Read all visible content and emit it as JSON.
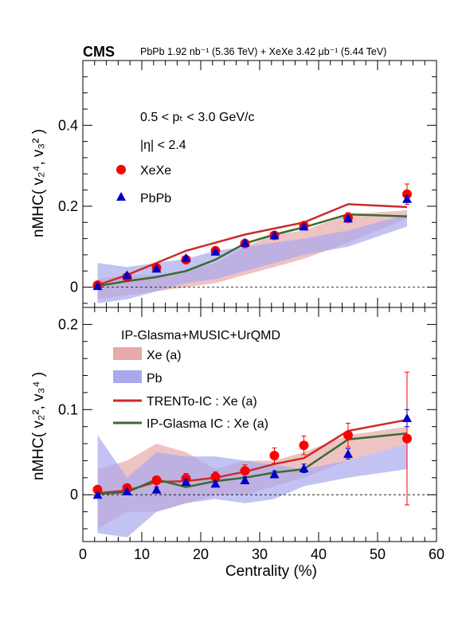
{
  "header": {
    "experiment": "CMS",
    "lumi_text": "PbPb 1.92 nb⁻¹ (5.36 TeV) + XeXe 3.42 μb⁻¹ (5.44 TeV)"
  },
  "colors": {
    "xe_marker": "#ff0000",
    "pb_marker": "#0000cc",
    "xe_band": "#e7a9a9",
    "pb_band": "#a9a9ee",
    "trento_line": "#cc2a2a",
    "ipglasma_line": "#3a6b2e"
  },
  "chart_data": [
    {
      "type": "scatter",
      "panel": "top",
      "ylabel": "nMHC( v₂⁴, v₃² )",
      "ylim": [
        -0.05,
        0.56
      ],
      "yticks": [
        0,
        0.2,
        0.4
      ],
      "ytick_labels": [
        "0",
        "0.2",
        "0.4"
      ],
      "annotations": [
        "0.5 < pₜ < 3.0 GeV/c",
        "|η| < 2.4"
      ],
      "legend": [
        "XeXe",
        "PbPb"
      ],
      "series": [
        {
          "name": "XeXe",
          "x": [
            2.5,
            7.5,
            12.5,
            17.5,
            22.5,
            27.5,
            32.5,
            37.5,
            45,
            55
          ],
          "y": [
            0.005,
            0.025,
            0.048,
            0.068,
            0.09,
            0.108,
            0.128,
            0.152,
            0.172,
            0.23
          ],
          "err": [
            0.004,
            0.004,
            0.005,
            0.007,
            0.007,
            0.008,
            0.008,
            0.01,
            0.012,
            0.025
          ]
        },
        {
          "name": "PbPb",
          "x": [
            2.5,
            7.5,
            12.5,
            17.5,
            22.5,
            27.5,
            32.5,
            37.5,
            45,
            55
          ],
          "y": [
            0.003,
            0.03,
            0.046,
            0.072,
            0.088,
            0.11,
            0.128,
            0.15,
            0.17,
            0.218
          ],
          "err": [
            0.002,
            0.002,
            0.003,
            0.004,
            0.004,
            0.004,
            0.005,
            0.005,
            0.006,
            0.008
          ]
        }
      ],
      "bands": [
        {
          "name": "Xe (a)",
          "x": [
            2.5,
            7.5,
            12.5,
            17.5,
            22.5,
            27.5,
            32.5,
            37.5,
            45,
            55
          ],
          "lo": [
            -0.03,
            -0.02,
            -0.01,
            0.0,
            0.01,
            0.03,
            0.05,
            0.07,
            0.11,
            0.17
          ],
          "hi": [
            0.02,
            0.03,
            0.03,
            0.04,
            0.06,
            0.1,
            0.13,
            0.14,
            0.18,
            0.19
          ]
        },
        {
          "name": "Pb",
          "x": [
            2.5,
            7.5,
            12.5,
            17.5,
            22.5,
            27.5,
            32.5,
            37.5,
            45,
            55
          ],
          "lo": [
            -0.04,
            -0.03,
            -0.01,
            0.01,
            0.02,
            0.04,
            0.06,
            0.08,
            0.1,
            0.15
          ],
          "hi": [
            0.06,
            0.05,
            0.06,
            0.07,
            0.09,
            0.1,
            0.11,
            0.12,
            0.14,
            0.18
          ]
        }
      ],
      "lines": [
        {
          "name": "TRENTo-IC : Xe (a)",
          "x": [
            2.5,
            7.5,
            12.5,
            17.5,
            22.5,
            27.5,
            32.5,
            37.5,
            45,
            55
          ],
          "y": [
            0.005,
            0.03,
            0.06,
            0.09,
            0.11,
            0.13,
            0.145,
            0.16,
            0.205,
            0.198
          ]
        },
        {
          "name": "IP-Glasma IC : Xe (a)",
          "x": [
            2.5,
            7.5,
            12.5,
            17.5,
            22.5,
            27.5,
            32.5,
            37.5,
            45,
            55
          ],
          "y": [
            0.003,
            0.015,
            0.025,
            0.04,
            0.068,
            0.108,
            0.13,
            0.148,
            0.18,
            0.175
          ]
        }
      ]
    },
    {
      "type": "scatter",
      "panel": "bottom",
      "xlabel": "Centrality (%)",
      "ylabel": "nMHC( v₂², v₃⁴ )",
      "xlim": [
        0,
        60
      ],
      "xticks": [
        0,
        10,
        20,
        30,
        40,
        50,
        60
      ],
      "xtick_labels": [
        "0",
        "10",
        "20",
        "30",
        "40",
        "50",
        "60"
      ],
      "ylim": [
        -0.055,
        0.22
      ],
      "yticks": [
        0,
        0.1,
        0.2
      ],
      "ytick_labels": [
        "0",
        "0.1",
        "0.2"
      ],
      "legend_title": "IP-Glasma+MUSIC+UrQMD",
      "legend": [
        "Xe (a)",
        "Pb",
        "TRENTo-IC : Xe (a)",
        "IP-Glasma IC : Xe (a)"
      ],
      "series": [
        {
          "name": "XeXe",
          "x": [
            2.5,
            7.5,
            12.5,
            17.5,
            22.5,
            27.5,
            32.5,
            37.5,
            45,
            55
          ],
          "y": [
            0.006,
            0.008,
            0.017,
            0.019,
            0.021,
            0.028,
            0.046,
            0.058,
            0.07,
            0.066
          ],
          "err": [
            0.004,
            0.004,
            0.005,
            0.006,
            0.006,
            0.007,
            0.009,
            0.011,
            0.014,
            0.078
          ]
        },
        {
          "name": "PbPb",
          "x": [
            2.5,
            7.5,
            12.5,
            17.5,
            22.5,
            27.5,
            32.5,
            37.5,
            45,
            55
          ],
          "y": [
            0.0,
            0.004,
            0.006,
            0.015,
            0.013,
            0.017,
            0.024,
            0.031,
            0.048,
            0.09
          ],
          "err": [
            0.002,
            0.002,
            0.003,
            0.003,
            0.003,
            0.004,
            0.004,
            0.005,
            0.006,
            0.01
          ]
        }
      ],
      "bands": [
        {
          "name": "Xe (a)",
          "x": [
            2.5,
            7.5,
            12.5,
            17.5,
            22.5,
            27.5,
            32.5,
            37.5,
            45,
            55
          ],
          "lo": [
            -0.04,
            -0.02,
            -0.02,
            -0.01,
            0.0,
            0.0,
            0.01,
            0.02,
            0.04,
            0.06
          ],
          "hi": [
            0.03,
            0.04,
            0.06,
            0.05,
            0.03,
            0.04,
            0.04,
            0.05,
            0.07,
            0.08
          ]
        },
        {
          "name": "Pb",
          "x": [
            2.5,
            7.5,
            12.5,
            17.5,
            22.5,
            27.5,
            32.5,
            37.5,
            45,
            55
          ],
          "lo": [
            -0.045,
            -0.05,
            -0.02,
            -0.01,
            -0.005,
            -0.01,
            -0.005,
            0.01,
            0.02,
            0.03
          ],
          "hi": [
            0.07,
            0.02,
            0.05,
            0.045,
            0.045,
            0.04,
            0.035,
            0.03,
            0.04,
            0.06
          ]
        }
      ],
      "lines": [
        {
          "name": "TRENTo-IC : Xe (a)",
          "x": [
            2.5,
            7.5,
            12.5,
            17.5,
            22.5,
            27.5,
            32.5,
            37.5,
            45,
            55
          ],
          "y": [
            0.002,
            0.005,
            0.015,
            0.016,
            0.02,
            0.027,
            0.036,
            0.043,
            0.075,
            0.088
          ]
        },
        {
          "name": "IP-Glasma IC : Xe (a)",
          "x": [
            2.5,
            7.5,
            12.5,
            17.5,
            22.5,
            27.5,
            32.5,
            37.5,
            45,
            55
          ],
          "y": [
            0.001,
            0.003,
            0.018,
            0.009,
            0.016,
            0.02,
            0.026,
            0.03,
            0.065,
            0.072
          ]
        }
      ]
    }
  ]
}
